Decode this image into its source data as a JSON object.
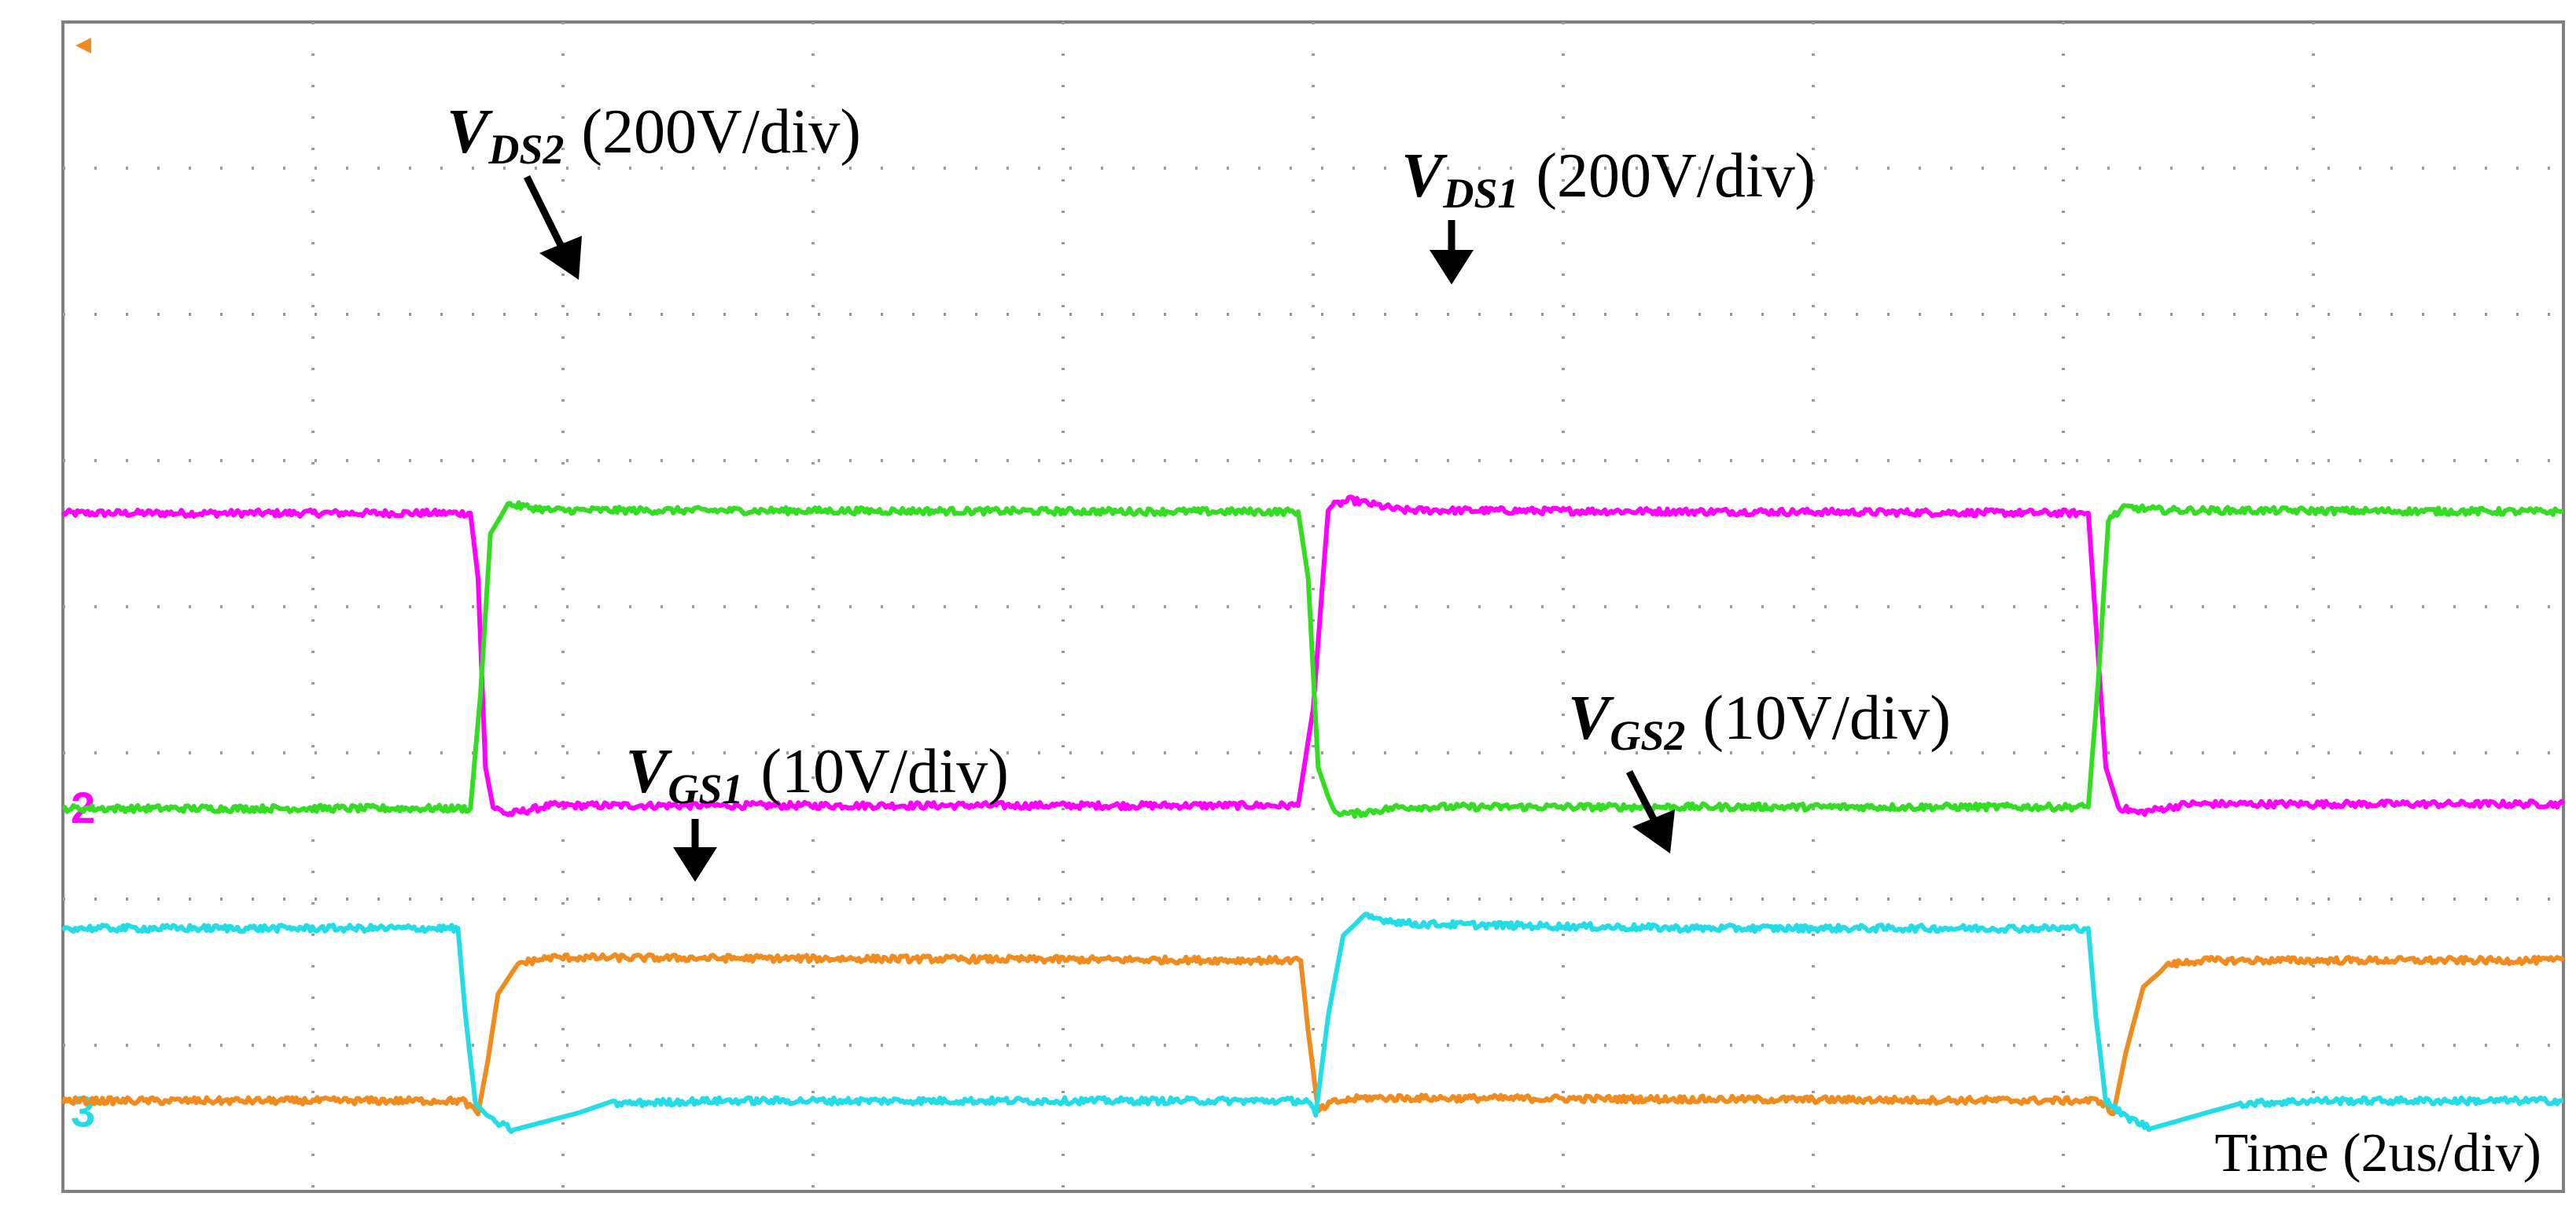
{
  "chart_data": {
    "type": "line",
    "title": "",
    "xlabel": "Time (2us/div)",
    "ylabel": "",
    "x_unit": "div",
    "y_unit": "div",
    "xlim": [
      0,
      10
    ],
    "ylim": [
      0,
      8
    ],
    "grid": true,
    "time_per_div": "2us",
    "colors": {
      "VDS1": "#ff00ff",
      "VDS2": "#33dd22",
      "VGS1": "#f08c1e",
      "VGS2": "#22dde8",
      "trigger_marker": "#f08c1e"
    },
    "channel_markers": [
      {
        "label": "2",
        "level_div": 2.63,
        "color": "#ff00ff"
      },
      {
        "label": "3",
        "level_div": 0.55,
        "color": "#22dde8"
      }
    ],
    "series": [
      {
        "name": "VDS1",
        "scale": "200V/div",
        "color": "#ff00ff",
        "points": [
          [
            0,
            4.64
          ],
          [
            1.63,
            4.64
          ],
          [
            1.66,
            4.2
          ],
          [
            1.69,
            2.9
          ],
          [
            1.72,
            2.63
          ],
          [
            1.78,
            2.58
          ],
          [
            1.95,
            2.64
          ],
          [
            4.94,
            2.64
          ],
          [
            5.0,
            3.3
          ],
          [
            5.06,
            4.68
          ],
          [
            5.15,
            4.73
          ],
          [
            5.35,
            4.66
          ],
          [
            8.1,
            4.64
          ],
          [
            8.17,
            2.9
          ],
          [
            8.22,
            2.63
          ],
          [
            8.3,
            2.59
          ],
          [
            8.5,
            2.65
          ],
          [
            10,
            2.65
          ]
        ]
      },
      {
        "name": "VDS2",
        "scale": "200V/div",
        "color": "#33dd22",
        "points": [
          [
            0,
            2.62
          ],
          [
            1.63,
            2.62
          ],
          [
            1.67,
            3.4
          ],
          [
            1.71,
            4.5
          ],
          [
            1.78,
            4.7
          ],
          [
            1.95,
            4.66
          ],
          [
            4.94,
            4.65
          ],
          [
            4.98,
            4.2
          ],
          [
            5.02,
            2.9
          ],
          [
            5.08,
            2.6
          ],
          [
            5.15,
            2.58
          ],
          [
            5.35,
            2.63
          ],
          [
            8.1,
            2.63
          ],
          [
            8.14,
            3.5
          ],
          [
            8.18,
            4.6
          ],
          [
            8.25,
            4.68
          ],
          [
            8.4,
            4.66
          ],
          [
            10,
            4.65
          ]
        ]
      },
      {
        "name": "VGS1",
        "scale": "10V/div",
        "color": "#f08c1e",
        "points": [
          [
            0,
            0.62
          ],
          [
            1.6,
            0.62
          ],
          [
            1.66,
            0.53
          ],
          [
            1.7,
            0.9
          ],
          [
            1.74,
            1.35
          ],
          [
            1.82,
            1.56
          ],
          [
            1.95,
            1.6
          ],
          [
            4.95,
            1.58
          ],
          [
            4.98,
            1.1
          ],
          [
            5.02,
            0.55
          ],
          [
            5.08,
            0.61
          ],
          [
            5.2,
            0.64
          ],
          [
            8.15,
            0.62
          ],
          [
            8.2,
            0.53
          ],
          [
            8.25,
            0.95
          ],
          [
            8.32,
            1.4
          ],
          [
            8.42,
            1.55
          ],
          [
            8.55,
            1.58
          ],
          [
            10,
            1.58
          ]
        ]
      },
      {
        "name": "VGS2",
        "scale": "10V/div",
        "color": "#22dde8",
        "points": [
          [
            0,
            1.8
          ],
          [
            1.58,
            1.8
          ],
          [
            1.61,
            1.2
          ],
          [
            1.65,
            0.6
          ],
          [
            1.72,
            0.48
          ],
          [
            1.8,
            0.42
          ],
          [
            2.2,
            0.6
          ],
          [
            2.6,
            0.62
          ],
          [
            4.98,
            0.62
          ],
          [
            5.01,
            0.52
          ],
          [
            5.06,
            1.2
          ],
          [
            5.12,
            1.75
          ],
          [
            5.2,
            1.88
          ],
          [
            5.4,
            1.83
          ],
          [
            6.5,
            1.8
          ],
          [
            8.1,
            1.8
          ],
          [
            8.13,
            1.2
          ],
          [
            8.17,
            0.62
          ],
          [
            8.24,
            0.52
          ],
          [
            8.35,
            0.43
          ],
          [
            8.7,
            0.6
          ],
          [
            9.0,
            0.62
          ],
          [
            10,
            0.62
          ]
        ]
      }
    ],
    "annotations": [
      {
        "series": "VDS2",
        "main": "V",
        "subscript": "DS2",
        "text": "(200V/div)"
      },
      {
        "series": "VDS1",
        "main": "V",
        "subscript": "DS1",
        "text": "(200V/div)"
      },
      {
        "series": "VGS1",
        "main": "V",
        "subscript": "GS1",
        "text": "(10V/div)"
      },
      {
        "series": "VGS2",
        "main": "V",
        "subscript": "GS2",
        "text": "(10V/div)"
      }
    ]
  }
}
